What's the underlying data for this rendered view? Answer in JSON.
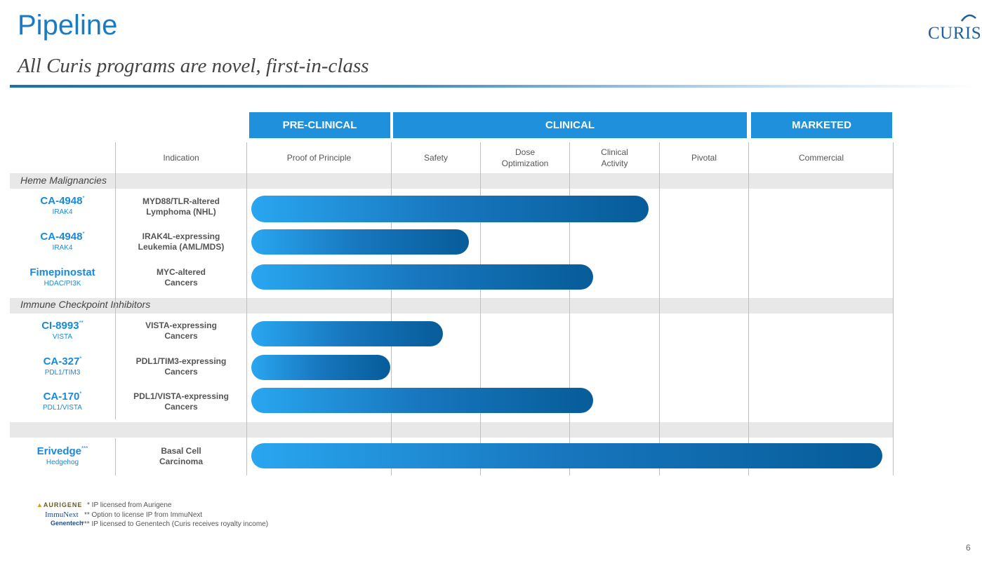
{
  "header": {
    "title": "Pipeline",
    "subtitle": "All Curis programs are novel, first-in-class",
    "logo_text": "CURIS"
  },
  "phases": {
    "preclinical": "PRE-CLINICAL",
    "clinical": "CLINICAL",
    "marketed": "MARKETED"
  },
  "columns": {
    "indication": "Indication",
    "proof": "Proof of Principle",
    "safety": "Safety",
    "dose_l1": "Dose",
    "dose_l2": "Optimization",
    "clinical_l1": "Clinical",
    "clinical_l2": "Activity",
    "pivotal": "Pivotal",
    "commercial": "Commercial"
  },
  "sections": {
    "heme": "Heme Malignancies",
    "immune": "Immune Checkpoint Inhibitors"
  },
  "programs": [
    {
      "name": "CA-4948",
      "sup": "*",
      "target": "IRAK4",
      "ind1": "MYD88/TLR-altered",
      "ind2": "Lymphoma (NHL)",
      "progress_stage": "Clinical Activity (partial)"
    },
    {
      "name": "CA-4948",
      "sup": "*",
      "target": "IRAK4",
      "ind1": "IRAK4L-expressing",
      "ind2": "Leukemia (AML/MDS)",
      "progress_stage": "Safety"
    },
    {
      "name": "Fimepinostat",
      "sup": "",
      "target": "HDAC/PI3K",
      "ind1": "MYC-altered",
      "ind2": "Cancers",
      "progress_stage": "Clinical Activity (partial)"
    },
    {
      "name": "CI-8993",
      "sup": "**",
      "target": "VISTA",
      "ind1": "VISTA-expressing",
      "ind2": "Cancers",
      "progress_stage": "Safety (partial)"
    },
    {
      "name": "CA-327",
      "sup": "*",
      "target": "PDL1/TIM3",
      "ind1": "PDL1/TIM3-expressing",
      "ind2": "Cancers",
      "progress_stage": "Proof of Principle"
    },
    {
      "name": "CA-170",
      "sup": "*",
      "target": "PDL1/VISTA",
      "ind1": "PDL1/VISTA-expressing",
      "ind2": "Cancers",
      "progress_stage": "Clinical Activity (partial)"
    },
    {
      "name": "Erivedge",
      "sup": "***",
      "target": "Hedgehog",
      "ind1": "Basal Cell",
      "ind2": "Carcinoma",
      "progress_stage": "Commercial"
    }
  ],
  "footnotes": {
    "aurigene_logo": "AURIGENE",
    "immunext_logo": "ImmuNext",
    "genentech_logo": "Genentech",
    "note1": "* IP licensed from Aurigene",
    "note2": "** Option to license IP from ImmuNext",
    "note3": "*** IP licensed to Genentech (Curis receives royalty income)"
  },
  "page_number": "6",
  "colors": {
    "accent": "#1e90dc",
    "program_blue": "#1a8ad8",
    "bar_start": "#29a6f0",
    "bar_end": "#075c99"
  }
}
